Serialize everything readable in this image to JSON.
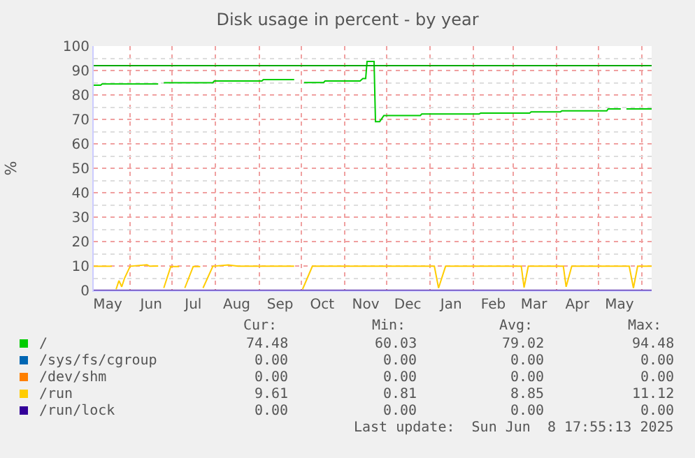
{
  "chart_data": {
    "type": "line",
    "title": "Disk usage in percent - by year",
    "ylabel": "%",
    "xlim": [
      "2024-05-06",
      "2025-06-08"
    ],
    "ylim": [
      0,
      100
    ],
    "xticks": [
      {
        "value": "2024-05-16",
        "label": "May"
      },
      {
        "value": "2024-06-16",
        "label": "Jun"
      },
      {
        "value": "2024-07-16",
        "label": "Jul"
      },
      {
        "value": "2024-08-16",
        "label": "Aug"
      },
      {
        "value": "2024-09-16",
        "label": "Sep"
      },
      {
        "value": "2024-10-16",
        "label": "Oct"
      },
      {
        "value": "2024-11-16",
        "label": "Nov"
      },
      {
        "value": "2024-12-16",
        "label": "Dec"
      },
      {
        "value": "2025-01-16",
        "label": "Jan"
      },
      {
        "value": "2025-02-15",
        "label": "Feb"
      },
      {
        "value": "2025-03-16",
        "label": "Mar"
      },
      {
        "value": "2025-04-16",
        "label": "Apr"
      },
      {
        "value": "2025-05-16",
        "label": "May"
      }
    ],
    "yticks": [
      0,
      10,
      20,
      30,
      40,
      50,
      60,
      70,
      80,
      90,
      100
    ],
    "grid": true,
    "legend": "bottom left",
    "marker": "none",
    "line_style": "solid",
    "series": [
      {
        "name": "/",
        "color": "#00cc00",
        "x": [
          "2024-05-06",
          "2024-05-11",
          "2024-05-12",
          "2024-06-21",
          "2024-06-23",
          "2024-06-25",
          "2024-07-30",
          "2024-07-31",
          "2024-09-03",
          "2024-09-04",
          "2024-09-26",
          "2024-09-29",
          "2024-10-03",
          "2024-10-17",
          "2024-10-18",
          "2024-11-12",
          "2024-11-14",
          "2024-11-16",
          "2024-11-17",
          "2024-11-22",
          "2024-11-23",
          "2024-11-26",
          "2024-11-29",
          "2024-12-25",
          "2024-12-26",
          "2025-02-05",
          "2025-02-06",
          "2025-03-13",
          "2025-03-14",
          "2025-04-04",
          "2025-04-05",
          "2025-05-07",
          "2025-05-08",
          "2025-05-17",
          "2025-05-19",
          "2025-05-21",
          "2025-06-08"
        ],
        "values": [
          84,
          84,
          84.5,
          84.5,
          null,
          85,
          85,
          85.7,
          85.7,
          86.3,
          86.3,
          null,
          85.1,
          85.1,
          85.7,
          85.7,
          86.7,
          86.7,
          93.7,
          93.7,
          69.1,
          69.1,
          71.6,
          71.6,
          72.2,
          72.2,
          72.6,
          72.6,
          73.1,
          73.1,
          73.5,
          73.5,
          74.3,
          74.3,
          null,
          74.3,
          74.3
        ]
      },
      {
        "name": "/sys/fs/cgroup",
        "color": "#0066b3"
      },
      {
        "name": "/dev/shm",
        "color": "#ff8000"
      },
      {
        "name": "/run",
        "color": "#ffcc00",
        "x": [
          "2024-05-06",
          "2024-05-19",
          "2024-05-20",
          "2024-05-22",
          "2024-05-24",
          "2024-05-26",
          "2024-05-28",
          "2024-06-01",
          "2024-06-13",
          "2024-06-15",
          "2024-06-21",
          "2024-06-23",
          "2024-06-25",
          "2024-06-30",
          "2024-07-06",
          "2024-07-08",
          "2024-07-10",
          "2024-07-16",
          "2024-07-21",
          "2024-07-22",
          "2024-07-23",
          "2024-07-30",
          "2024-08-10",
          "2024-08-17",
          "2024-09-26",
          "2024-09-29",
          "2024-10-02",
          "2024-10-09",
          "2025-01-04",
          "2025-01-07",
          "2025-01-12",
          "2025-03-07",
          "2025-03-09",
          "2025-03-12",
          "2025-04-06",
          "2025-04-08",
          "2025-04-12",
          "2025-05-23",
          "2025-05-26",
          "2025-05-29",
          "2025-06-08"
        ],
        "values": [
          9.9,
          9.9,
          null,
          0.5,
          4,
          1.5,
          5,
          9.9,
          10.5,
          9.9,
          10,
          null,
          1,
          9.8,
          9.8,
          null,
          1,
          9.8,
          9.8,
          null,
          1,
          9.9,
          10.4,
          9.9,
          9.9,
          null,
          0.5,
          9.9,
          9.9,
          1,
          9.9,
          9.9,
          1.2,
          9.9,
          9.9,
          1.5,
          9.9,
          9.9,
          1,
          9.9,
          9.9
        ]
      },
      {
        "name": "/run/lock",
        "color": "#330099",
        "x": [
          "2024-05-06",
          "2025-06-08"
        ],
        "values": [
          0,
          0
        ]
      }
    ],
    "ref_lines": [
      {
        "axis": "y",
        "value": 92,
        "color": "#00aa00"
      }
    ],
    "annotations": [
      "Cur:",
      "Min:",
      "Avg:",
      "Max:",
      "74.48",
      "60.03",
      "79.02",
      "94.48",
      "0.00",
      "0.00",
      "0.00",
      "0.00",
      "0.00",
      "0.00",
      "0.00",
      "0.00",
      "9.61",
      "0.81",
      "8.85",
      "11.12",
      "0.00",
      "0.00",
      "0.00",
      "0.00",
      "Last update:  Sun Jun  8 17:55:13 2025"
    ]
  }
}
